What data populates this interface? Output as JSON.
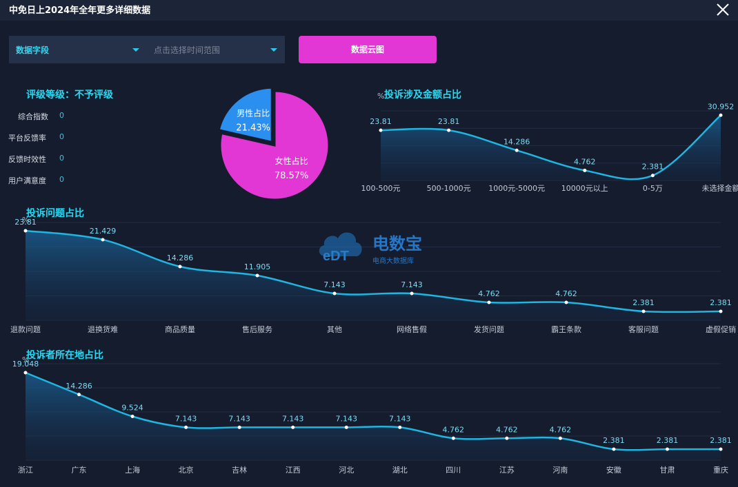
{
  "window": {
    "title": "中免日上2024年全年更多详细数据"
  },
  "controls": {
    "field_select": "数据字段",
    "time_select": "点击选择时间范围",
    "cloud_button": "数据云图"
  },
  "rating": {
    "title": "评级等级：不予评级",
    "metrics": [
      {
        "label": "综合指数",
        "value": "0"
      },
      {
        "label": "平台反馈率",
        "value": "0"
      },
      {
        "label": "反馈时效性",
        "value": "0"
      },
      {
        "label": "用户满意度",
        "value": "0"
      }
    ]
  },
  "watermark": {
    "logo": "eDT",
    "name": "电数宝",
    "sub": "电商大数据库"
  },
  "colors": {
    "line": "#1fb6e2",
    "pie_male": "#2b8ff0",
    "pie_female": "#e237d4",
    "title": "#27d9f2",
    "button": "#e237d4"
  },
  "chart_data": [
    {
      "id": "gender",
      "type": "pie",
      "title": "",
      "slices": [
        {
          "name": "男性占比",
          "value": 21.43,
          "label": "21.43%"
        },
        {
          "name": "女性占比",
          "value": 78.57,
          "label": "78.57%"
        }
      ]
    },
    {
      "id": "amount",
      "type": "area",
      "title": "投诉涉及金额占比",
      "ylabel": "%",
      "categories": [
        "100-500元",
        "500-1000元",
        "1000元-5000元",
        "10000元以上",
        "0-5万",
        "未选择金额"
      ],
      "values": [
        23.81,
        23.81,
        14.286,
        4.762,
        2.381,
        30.952
      ],
      "ylim": [
        0,
        33
      ]
    },
    {
      "id": "issues",
      "type": "area",
      "title": "投诉问题占比",
      "ylabel": "%",
      "categories": [
        "退款问题",
        "退换货难",
        "商品质量",
        "售后服务",
        "其他",
        "网络售假",
        "发货问题",
        "霸王条款",
        "客服问题",
        "虚假促销"
      ],
      "values": [
        23.81,
        21.429,
        14.286,
        11.905,
        7.143,
        7.143,
        4.762,
        4.762,
        2.381,
        2.381
      ],
      "ylim": [
        0,
        26
      ]
    },
    {
      "id": "region",
      "type": "area",
      "title": "投诉者所在地占比",
      "ylabel": "%",
      "categories": [
        "浙江",
        "广东",
        "上海",
        "北京",
        "吉林",
        "江西",
        "河北",
        "湖北",
        "四川",
        "江苏",
        "河南",
        "安徽",
        "甘肃",
        "重庆"
      ],
      "values": [
        19.048,
        14.286,
        9.524,
        7.143,
        7.143,
        7.143,
        7.143,
        7.143,
        4.762,
        4.762,
        4.762,
        2.381,
        2.381,
        2.381
      ],
      "ylim": [
        0,
        21
      ]
    }
  ]
}
